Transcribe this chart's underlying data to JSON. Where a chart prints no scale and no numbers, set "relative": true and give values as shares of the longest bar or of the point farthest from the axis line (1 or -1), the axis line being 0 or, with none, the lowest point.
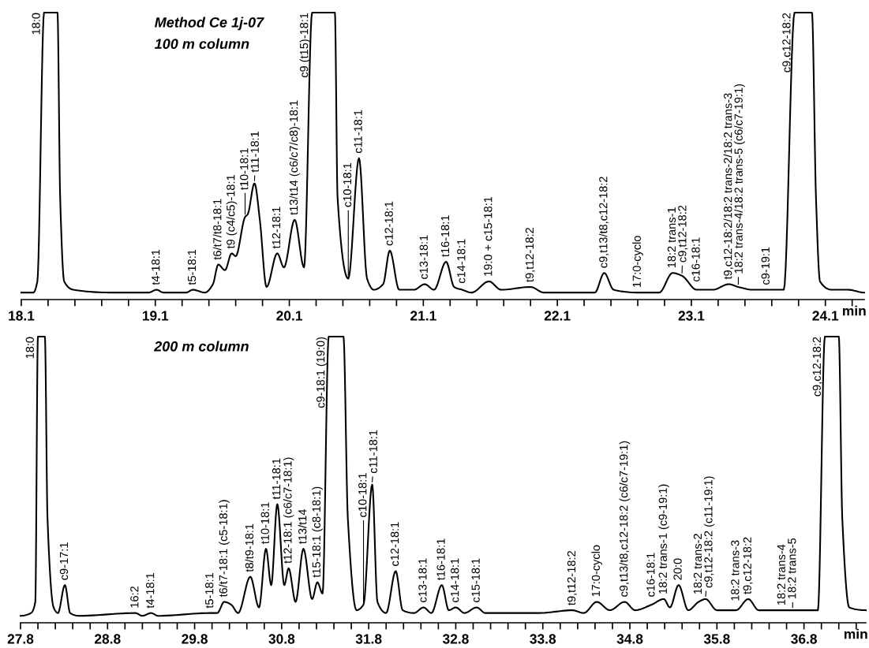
{
  "chart_data": [
    {
      "type": "line",
      "relative": true,
      "tick_labels": "x",
      "xlabel": "min",
      "xlim": [
        18.1,
        24.39
      ],
      "xticks": [
        18.1,
        {
          "value": 18.3,
          "label": null
        },
        {
          "value": 18.5,
          "label": null
        },
        {
          "value": 18.7,
          "label": null
        },
        {
          "value": 18.9,
          "label": null
        },
        19.1,
        {
          "value": 19.3,
          "label": null
        },
        {
          "value": 19.5,
          "label": null
        },
        {
          "value": 19.7,
          "label": null
        },
        {
          "value": 19.9,
          "label": null
        },
        20.1,
        {
          "value": 20.3,
          "label": null
        },
        {
          "value": 20.5,
          "label": null
        },
        {
          "value": 20.7,
          "label": null
        },
        {
          "value": 20.9,
          "label": null
        },
        21.1,
        {
          "value": 21.3,
          "label": null
        },
        {
          "value": 21.5,
          "label": null
        },
        {
          "value": 21.7,
          "label": null
        },
        {
          "value": 21.9,
          "label": null
        },
        22.1,
        {
          "value": 22.3,
          "label": null
        },
        {
          "value": 22.5,
          "label": null
        },
        {
          "value": 22.7,
          "label": null
        },
        {
          "value": 22.9,
          "label": null
        },
        23.1,
        {
          "value": 23.3,
          "label": null
        },
        {
          "value": 23.5,
          "label": null
        },
        {
          "value": 23.7,
          "label": null
        },
        {
          "value": 23.9,
          "label": null
        },
        24.1,
        {
          "value": 24.3,
          "label": null
        }
      ],
      "x": [
        18.1,
        18.19,
        18.22,
        18.27,
        18.37,
        18.39,
        18.42,
        18.49,
        18.78,
        19.05,
        19.11,
        19.16,
        19.33,
        19.38,
        19.47,
        19.53,
        19.57,
        19.62,
        19.67,
        19.7,
        19.77,
        19.79,
        19.84,
        19.88,
        19.93,
        20.01,
        20.06,
        20.14,
        20.21,
        20.27,
        20.44,
        20.46,
        20.54,
        20.62,
        20.68,
        20.73,
        20.8,
        20.85,
        20.92,
        21.03,
        21.11,
        21.18,
        21.27,
        21.33,
        21.39,
        21.46,
        21.59,
        21.68,
        21.9,
        22.0,
        22.38,
        22.45,
        22.52,
        22.7,
        22.86,
        22.96,
        23.03,
        23.14,
        23.26,
        23.38,
        23.45,
        23.56,
        23.66,
        23.79,
        23.87,
        24.0,
        24.03,
        24.06,
        24.15,
        24.27,
        24.39
      ],
      "series": [
        {
          "color": "#000000",
          "values": [
            0,
            0,
            0.04,
            1,
            1,
            0.34,
            0.04,
            0.01,
            0,
            0,
            0.01,
            0,
            0,
            0.01,
            0,
            0.03,
            0.1,
            0.08,
            0.14,
            0.13,
            0.27,
            0.28,
            0.39,
            0.26,
            0.02,
            0.14,
            0.09,
            0.26,
            0.09,
            1,
            1,
            0.34,
            0.05,
            0.48,
            0.05,
            0.01,
            0.03,
            0.15,
            0.01,
            0.01,
            0.03,
            0.01,
            0.11,
            0.02,
            0.01,
            0,
            0.04,
            0.01,
            0.02,
            0,
            0,
            0.07,
            0.01,
            0,
            0,
            0.07,
            0.06,
            0.01,
            0.01,
            0.03,
            0.02,
            0.01,
            0.01,
            0.01,
            1,
            1,
            0.34,
            0.04,
            0.01,
            0.01,
            0
          ]
        }
      ],
      "annotations": [
        "Method Ce 1j-07",
        "100 m column",
        {
          "text": "18:0",
          "x": 18.27,
          "y": 1
        },
        {
          "text": "t4-18:1",
          "x": 19.11,
          "y": 0.01
        },
        {
          "text": "t5-18:1",
          "x": 19.38,
          "y": 0.01
        },
        {
          "text": "t6/t7/t8-18:1",
          "x": 19.57,
          "y": 0.1
        },
        {
          "text": "t9 (c4/c5)-18:1",
          "x": 19.67,
          "y": 0.14
        },
        {
          "text": "t10-18:1",
          "x": 19.77,
          "y": 0.27
        },
        {
          "text": "t11-18:1",
          "x": 19.84,
          "y": 0.39
        },
        {
          "text": "t12-18:1",
          "x": 20.01,
          "y": 0.14
        },
        {
          "text": "t13/t14 (c6/c7/c8)-18:1",
          "x": 20.14,
          "y": 0.26
        },
        {
          "text": "c9 (t15)-18:1",
          "x": 20.27,
          "y": 1
        },
        {
          "text": "c10-18:1",
          "x": 20.54,
          "y": 0.05
        },
        {
          "text": "c11-18:1",
          "x": 20.62,
          "y": 0.48
        },
        {
          "text": "c12-18:1",
          "x": 20.85,
          "y": 0.15
        },
        {
          "text": "c13-18:1",
          "x": 21.11,
          "y": 0.03
        },
        {
          "text": "t16-18:1",
          "x": 21.27,
          "y": 0.11
        },
        {
          "text": "c14-18:1",
          "x": 21.39,
          "y": 0.01
        },
        {
          "text": "19:0 + c15-18:1",
          "x": 21.59,
          "y": 0.04
        },
        {
          "text": "t9,t12-18:2",
          "x": 21.9,
          "y": 0.02
        },
        {
          "text": "c9,t13/t8,c12-18:2",
          "x": 22.45,
          "y": 0.07
        },
        {
          "text": "17:0-cyclo",
          "x": 22.7,
          "y": 0
        },
        {
          "text": "18:2 trans-1",
          "x": 22.96,
          "y": 0.07
        },
        {
          "text": "c9,t12-18:2",
          "x": 23.03,
          "y": 0.06
        },
        {
          "text": "c16-18:1",
          "x": 23.14,
          "y": 0.01
        },
        {
          "text": "t9,c12-18:2/18:2 trans-2/18:2 trans-3",
          "x": 23.38,
          "y": 0.03
        },
        {
          "text": "18:2 trans-4/18:2 trans-5 (c6/c7-19:1)",
          "x": 23.45,
          "y": 0.02
        },
        {
          "text": "c9-19:1",
          "x": 23.66,
          "y": 0.01
        },
        {
          "text": "c9,c12-18:2",
          "x": 23.87,
          "y": 1
        }
      ]
    },
    {
      "type": "line",
      "relative": true,
      "tick_labels": "x",
      "xlabel": "min",
      "xlim": [
        27.8,
        37.51
      ],
      "xticks": [
        27.8,
        {
          "value": 28.0,
          "label": null
        },
        {
          "value": 28.2,
          "label": null
        },
        {
          "value": 28.4,
          "label": null
        },
        {
          "value": 28.6,
          "label": null
        },
        28.8,
        {
          "value": 29.0,
          "label": null
        },
        {
          "value": 29.2,
          "label": null
        },
        {
          "value": 29.4,
          "label": null
        },
        {
          "value": 29.6,
          "label": null
        },
        29.8,
        {
          "value": 30.0,
          "label": null
        },
        {
          "value": 30.2,
          "label": null
        },
        {
          "value": 30.4,
          "label": null
        },
        {
          "value": 30.6,
          "label": null
        },
        30.8,
        {
          "value": 31.0,
          "label": null
        },
        {
          "value": 31.2,
          "label": null
        },
        {
          "value": 31.4,
          "label": null
        },
        {
          "value": 31.6,
          "label": null
        },
        31.8,
        {
          "value": 32.0,
          "label": null
        },
        {
          "value": 32.2,
          "label": null
        },
        {
          "value": 32.4,
          "label": null
        },
        {
          "value": 32.6,
          "label": null
        },
        32.8,
        {
          "value": 33.0,
          "label": null
        },
        {
          "value": 33.2,
          "label": null
        },
        {
          "value": 33.4,
          "label": null
        },
        {
          "value": 33.6,
          "label": null
        },
        33.8,
        {
          "value": 34.0,
          "label": null
        },
        {
          "value": 34.2,
          "label": null
        },
        {
          "value": 34.4,
          "label": null
        },
        {
          "value": 34.6,
          "label": null
        },
        34.8,
        {
          "value": 35.0,
          "label": null
        },
        {
          "value": 35.2,
          "label": null
        },
        {
          "value": 35.4,
          "label": null
        },
        {
          "value": 35.6,
          "label": null
        },
        35.8,
        {
          "value": 36.0,
          "label": null
        },
        {
          "value": 36.2,
          "label": null
        },
        {
          "value": 36.4,
          "label": null
        },
        {
          "value": 36.6,
          "label": null
        },
        36.8,
        {
          "value": 37.0,
          "label": null
        },
        {
          "value": 37.2,
          "label": null
        },
        {
          "value": 37.4,
          "label": null
        }
      ],
      "x": [
        27.8,
        27.92,
        27.97,
        28.0,
        28.08,
        28.11,
        28.18,
        28.23,
        28.31,
        28.37,
        28.47,
        29.12,
        29.2,
        29.3,
        29.38,
        29.98,
        30.06,
        30.14,
        30.22,
        30.3,
        30.44,
        30.54,
        30.62,
        30.68,
        30.75,
        30.83,
        30.88,
        30.96,
        31.05,
        31.15,
        31.21,
        31.27,
        31.34,
        31.51,
        31.56,
        31.66,
        31.74,
        31.84,
        31.9,
        32.0,
        32.11,
        32.19,
        32.32,
        32.43,
        32.52,
        32.64,
        32.72,
        32.8,
        32.9,
        33.04,
        33.14,
        33.43,
        33.76,
        34.14,
        34.27,
        34.42,
        34.57,
        34.74,
        34.86,
        35.05,
        35.19,
        35.26,
        35.36,
        35.47,
        35.59,
        35.67,
        35.8,
        36.02,
        36.16,
        36.28,
        36.55,
        36.67,
        36.96,
        37.04,
        37.2,
        37.24,
        37.32,
        37.51
      ],
      "series": [
        {
          "color": "#000000",
          "values": [
            0,
            0.01,
            0.05,
            1,
            1,
            0.35,
            0.03,
            0.01,
            0.11,
            0.01,
            0,
            0.01,
            0,
            0.01,
            0,
            0.01,
            0.01,
            0.05,
            0.04,
            0.01,
            0.14,
            0.03,
            0.24,
            0.11,
            0.4,
            0.11,
            0.17,
            0.05,
            0.24,
            0.06,
            0.12,
            0.08,
            1,
            1,
            0.35,
            0.02,
            0.04,
            0.47,
            0.05,
            0.01,
            0.16,
            0.02,
            0.01,
            0.03,
            0.01,
            0.11,
            0.02,
            0.03,
            0.01,
            0.03,
            0.01,
            0.01,
            0.01,
            0.02,
            0.01,
            0.05,
            0.02,
            0.05,
            0.02,
            0.04,
            0.06,
            0.03,
            0.11,
            0.02,
            0.05,
            0.06,
            0.02,
            0.02,
            0.06,
            0.02,
            0.02,
            0.02,
            0.02,
            1,
            1,
            0.35,
            0.03,
            0.02
          ]
        }
      ],
      "annotations": [
        "200 m column",
        {
          "text": "18:0",
          "x": 28.0,
          "y": 1
        },
        {
          "text": "c9-17:1",
          "x": 28.31,
          "y": 0.11
        },
        {
          "text": "16:2",
          "x": 29.12,
          "y": 0.01
        },
        {
          "text": "t4-18:1",
          "x": 29.3,
          "y": 0.01
        },
        {
          "text": "t5-18:1",
          "x": 29.98,
          "y": 0.01
        },
        {
          "text": "t6/t7-18:1 (c5-18:1)",
          "x": 30.14,
          "y": 0.05
        },
        {
          "text": "t8/t9-18:1",
          "x": 30.44,
          "y": 0.14
        },
        {
          "text": "t10-18:1",
          "x": 30.62,
          "y": 0.24
        },
        {
          "text": "t11-18:1",
          "x": 30.75,
          "y": 0.4
        },
        {
          "text": "t12-18:1 (c6/c7-18:1)",
          "x": 30.88,
          "y": 0.17
        },
        {
          "text": "t13/t14",
          "x": 31.05,
          "y": 0.24
        },
        {
          "text": "t15-18:1 (c8-18:1)",
          "x": 31.21,
          "y": 0.12
        },
        {
          "text": "c9-18:1 (19:0)",
          "x": 31.34,
          "y": 1
        },
        {
          "text": "c10-18:1",
          "x": 31.74,
          "y": 0.04
        },
        {
          "text": "c11-18:1",
          "x": 31.84,
          "y": 0.47
        },
        {
          "text": "c12-18:1",
          "x": 32.11,
          "y": 0.16
        },
        {
          "text": "c13-18:1",
          "x": 32.43,
          "y": 0.03
        },
        {
          "text": "t16-18:1",
          "x": 32.64,
          "y": 0.11
        },
        {
          "text": "c14-18:1",
          "x": 32.8,
          "y": 0.03
        },
        {
          "text": "c15-18:1",
          "x": 33.04,
          "y": 0.03
        },
        {
          "text": "t9,t12-18:2",
          "x": 34.14,
          "y": 0.02
        },
        {
          "text": "17:0-cyclo",
          "x": 34.42,
          "y": 0.05
        },
        {
          "text": "c9,t13/t8,c12-18:2 (c6/c7-19:1)",
          "x": 34.74,
          "y": 0.05
        },
        {
          "text": "c16-18:1",
          "x": 35.05,
          "y": 0.04
        },
        {
          "text": "18:2 trans-1 (c9-19:1)",
          "x": 35.19,
          "y": 0.06
        },
        {
          "text": "20:0",
          "x": 35.36,
          "y": 0.11
        },
        {
          "text": "18:2 trans-2",
          "x": 35.59,
          "y": 0.05
        },
        {
          "text": "c9,t12-18:2 (c11-19:1)",
          "x": 35.67,
          "y": 0.06
        },
        {
          "text": "18:2 trans-3",
          "x": 36.02,
          "y": 0.02
        },
        {
          "text": "t9,c12-18:2",
          "x": 36.16,
          "y": 0.06
        },
        {
          "text": "18:2 trans-4",
          "x": 36.55,
          "y": 0.02
        },
        {
          "text": "18:2 trans-5",
          "x": 36.67,
          "y": 0.02
        },
        {
          "text": "c9,c12-18:2",
          "x": 37.04,
          "y": 1
        }
      ]
    }
  ]
}
